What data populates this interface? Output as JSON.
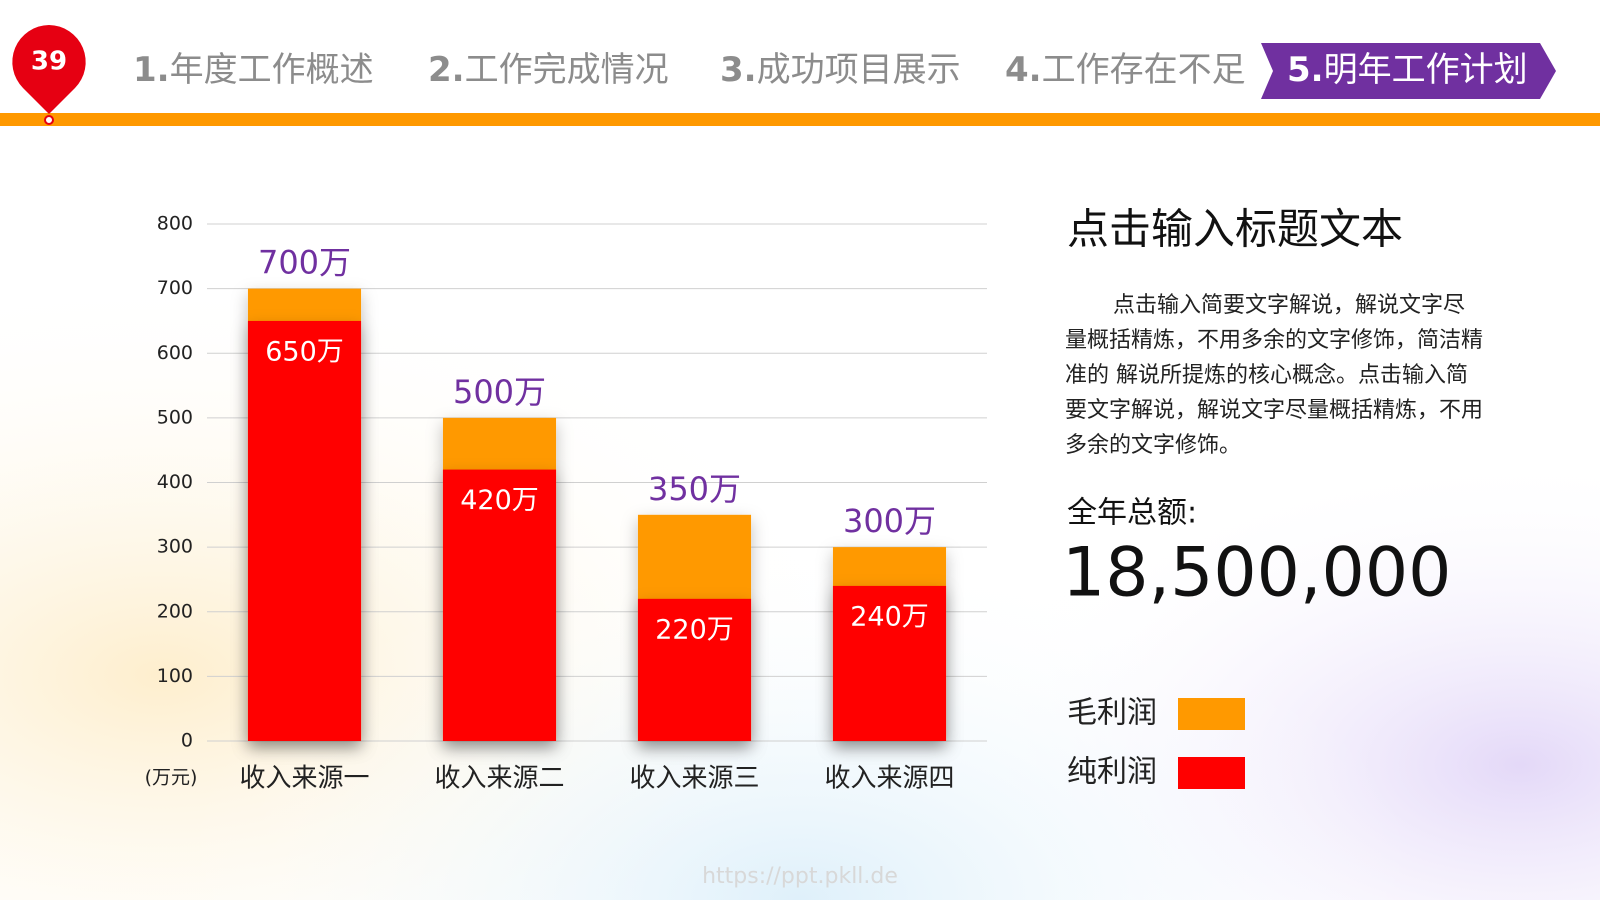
{
  "badge": "39",
  "nav": {
    "items": [
      {
        "num": "1.",
        "text": "年度工作概述"
      },
      {
        "num": "2.",
        "text": "工作完成情况"
      },
      {
        "num": "3.",
        "text": "成功项目展示"
      },
      {
        "num": "4.",
        "text": "工作存在不足"
      },
      {
        "num": "5.",
        "text": "明年工作计划"
      }
    ],
    "active": 4
  },
  "chart_data": {
    "type": "bar",
    "unit_label": "(万元)",
    "categories": [
      "收入来源一",
      "收入来源二",
      "收入来源三",
      "收入来源四"
    ],
    "series": [
      {
        "name": "毛利润",
        "color": "#ff9900",
        "values": [
          700,
          500,
          350,
          300
        ],
        "value_labels": [
          "700万",
          "500万",
          "350万",
          "300万"
        ]
      },
      {
        "name": "纯利润",
        "color": "#ff0000",
        "values": [
          650,
          420,
          220,
          240
        ],
        "value_labels": [
          "650万",
          "420万",
          "220万",
          "240万"
        ]
      }
    ],
    "ylim": [
      0,
      800
    ],
    "yticks": [
      0,
      100,
      200,
      300,
      400,
      500,
      600,
      700,
      800
    ],
    "grid": true,
    "overlap": true
  },
  "side": {
    "title": "点击输入标题文本",
    "paragraph": "点击输入简要文字解说，解说文字尽量概括精炼，不用多余的文字修饰，简洁精准的 解说所提炼的核心概念。点击输入简要文字解说，解说文字尽量概括精炼，不用多余的文字修饰。",
    "total_label": "全年总额:",
    "total_value": "18,500,000"
  },
  "watermark": "https://ppt.pkll.de"
}
